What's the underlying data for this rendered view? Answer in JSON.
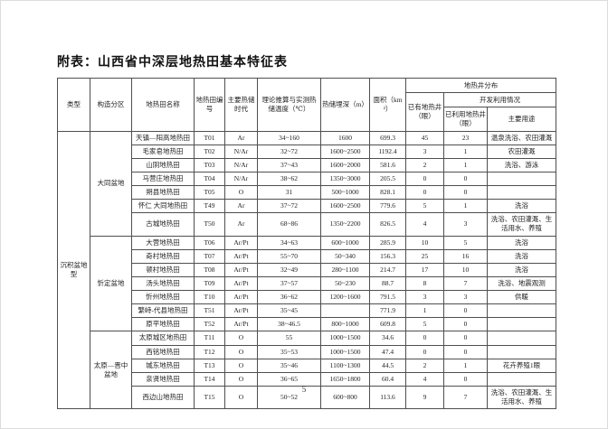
{
  "page": {
    "title": "附表：山西省中深层地热田基本特征表",
    "page_number": "5"
  },
  "table": {
    "headers": {
      "type": "类型",
      "division": "构造分区",
      "field_name": "地热田名称",
      "field_no": "地热田编号",
      "reservoir_era": "主要热储时代",
      "temperature": "理论推算与实测热储温度（℃）",
      "depth": "热储埋深（m）",
      "area": "面积（km²）",
      "well_distribution": "地热井分布",
      "existing_wells": "已有地热井（眼）",
      "development": "开发利用情况",
      "used_wells": "已利用地热井（眼）",
      "main_use": "主要用途"
    },
    "type_label": "沉积盆地型",
    "sections": [
      {
        "division": "大同盆地",
        "rows": [
          {
            "name": "天镇—阳高地热田",
            "no": "T01",
            "era": "Ar",
            "temp": "34~160",
            "depth": "1600",
            "area": "699.3",
            "existing": "45",
            "used": "23",
            "use": "温泉洗浴、农田灌溉"
          },
          {
            "name": "毛家皂地热田",
            "no": "T02",
            "era": "N/Ar",
            "temp": "32~72",
            "depth": "1600~2500",
            "area": "1192.4",
            "existing": "3",
            "used": "1",
            "use": "农田灌溉"
          },
          {
            "name": "山阴地热田",
            "no": "T03",
            "era": "N/Ar",
            "temp": "37~43",
            "depth": "1600~2000",
            "area": "581.6",
            "existing": "2",
            "used": "1",
            "use": "洗浴、游泳"
          },
          {
            "name": "马营庄地热田",
            "no": "T04",
            "era": "N/Ar",
            "temp": "38~62",
            "depth": "1350~3000",
            "area": "205.5",
            "existing": "0",
            "used": "0",
            "use": ""
          },
          {
            "name": "朔县地热田",
            "no": "T05",
            "era": "O",
            "temp": "31",
            "depth": "500~1000",
            "area": "828.1",
            "existing": "0",
            "used": "0",
            "use": ""
          },
          {
            "name": "怀仁 大同地热田",
            "no": "T49",
            "era": "Ar",
            "temp": "37~72",
            "depth": "1600~2500",
            "area": "779.6",
            "existing": "5",
            "used": "1",
            "use": "洗浴"
          },
          {
            "name": "古城地热田",
            "no": "T50",
            "era": "Ar",
            "temp": "68~86",
            "depth": "1350~2200",
            "area": "826.5",
            "existing": "4",
            "used": "3",
            "use": "洗浴、农田灌溉、生活用水、养殖"
          }
        ]
      },
      {
        "division": "忻定盆地",
        "rows": [
          {
            "name": "大营地热田",
            "no": "T06",
            "era": "Ar/Pt",
            "temp": "34~63",
            "depth": "600~1000",
            "area": "285.9",
            "existing": "10",
            "used": "5",
            "use": "洗浴"
          },
          {
            "name": "奇村地热田",
            "no": "T07",
            "era": "Ar/Pt",
            "temp": "55~70",
            "depth": "50~340",
            "area": "156.3",
            "existing": "25",
            "used": "16",
            "use": "洗浴"
          },
          {
            "name": "顿村地热田",
            "no": "T08",
            "era": "Ar/Pt",
            "temp": "32~49",
            "depth": "280~1100",
            "area": "214.7",
            "existing": "17",
            "used": "10",
            "use": "洗浴"
          },
          {
            "name": "汤头地热田",
            "no": "T09",
            "era": "Ar/Pt",
            "temp": "37~57",
            "depth": "50~230",
            "area": "88.7",
            "existing": "8",
            "used": "7",
            "use": "洗浴、地震观测"
          },
          {
            "name": "忻州地热田",
            "no": "T10",
            "era": "Ar/Pt",
            "temp": "36~62",
            "depth": "1200~1600",
            "area": "791.5",
            "existing": "3",
            "used": "3",
            "use": "供暖"
          },
          {
            "name": "繁峙-代县地热田",
            "no": "T51",
            "era": "Ar/Pt",
            "temp": "35~45",
            "depth": "",
            "area": "771.9",
            "existing": "1",
            "used": "0",
            "use": ""
          },
          {
            "name": "原平地热田",
            "no": "T52",
            "era": "Ar/Pt",
            "temp": "38~46.5",
            "depth": "800~1000",
            "area": "609.8",
            "existing": "5",
            "used": "0",
            "use": ""
          }
        ]
      },
      {
        "division": "太原—晋中盆地",
        "rows": [
          {
            "name": "太原城区地热田",
            "no": "T11",
            "era": "O",
            "temp": "55",
            "depth": "1000~1500",
            "area": "34.6",
            "existing": "0",
            "used": "0",
            "use": ""
          },
          {
            "name": "西铭地热田",
            "no": "T12",
            "era": "O",
            "temp": "35~53",
            "depth": "1000~1500",
            "area": "47.4",
            "existing": "0",
            "used": "0",
            "use": ""
          },
          {
            "name": "城东地热田",
            "no": "T13",
            "era": "O",
            "temp": "35~46",
            "depth": "1100~1300",
            "area": "44.5",
            "existing": "2",
            "used": "1",
            "use": "花卉养殖1眼"
          },
          {
            "name": "亲贤地热田",
            "no": "T14",
            "era": "O",
            "temp": "36~65",
            "depth": "1650~1800",
            "area": "60.4",
            "existing": "4",
            "used": "0",
            "use": ""
          },
          {
            "name": "西边山地热田",
            "no": "T15",
            "era": "O",
            "temp": "50~52",
            "depth": "600~800",
            "area": "113.6",
            "existing": "9",
            "used": "7",
            "use": "洗浴、农田灌溉、生活用水、养殖"
          }
        ]
      }
    ]
  }
}
